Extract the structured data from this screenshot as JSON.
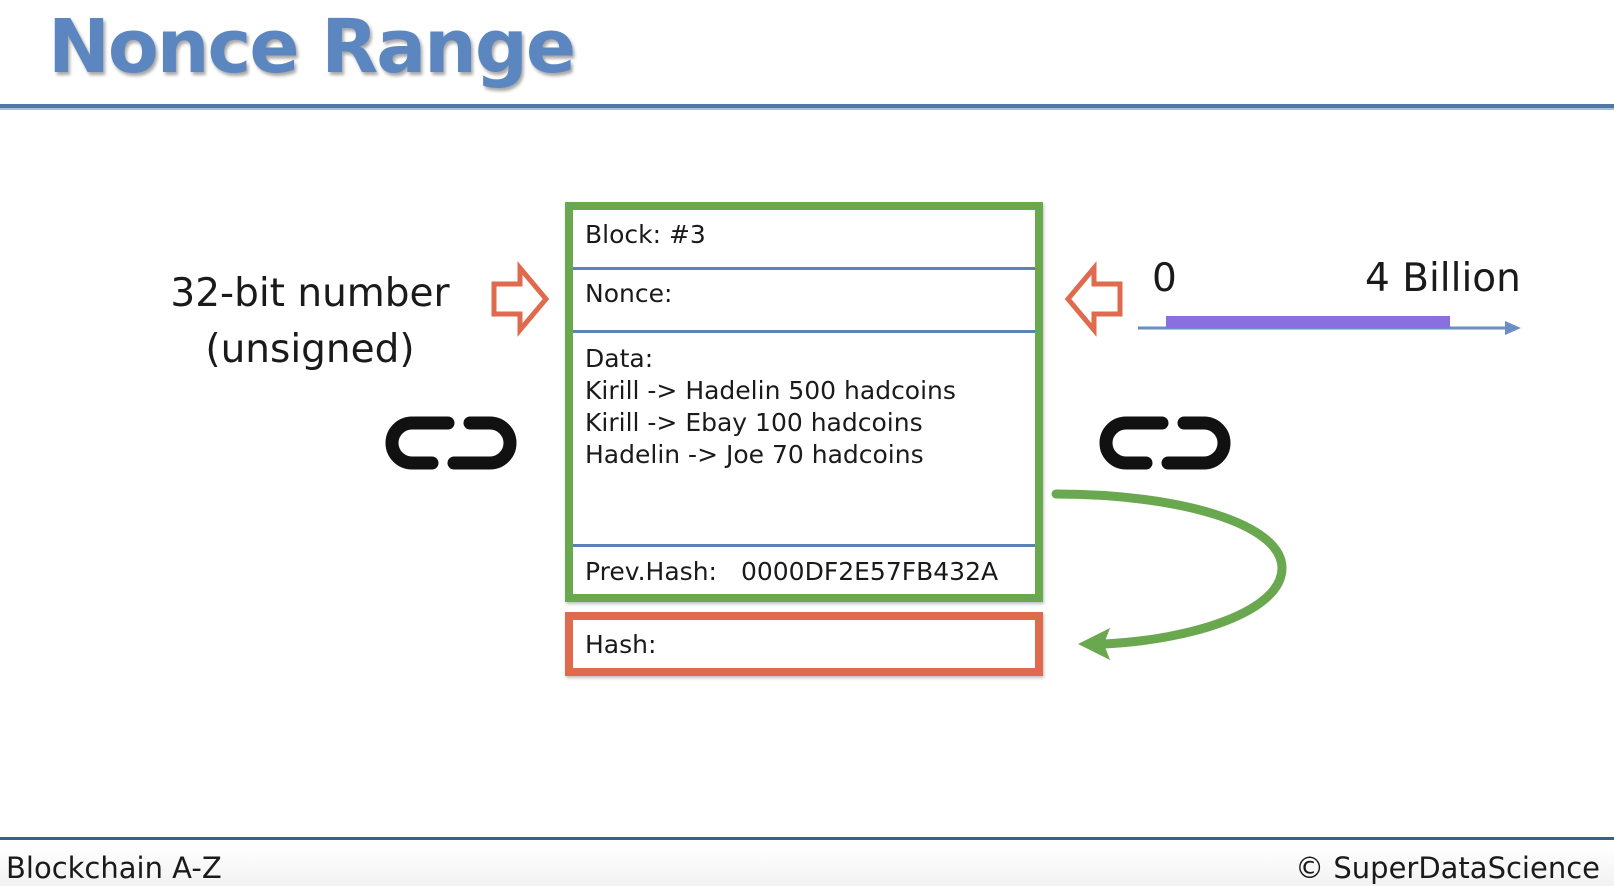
{
  "slide": {
    "title": "Nonce Range",
    "left_caption": [
      "32-bit number",
      "(unsigned)"
    ]
  },
  "block": {
    "block_label": "Block: #3",
    "nonce_label": "Nonce:",
    "data_label": "Data:",
    "transactions": [
      "Kirill -> Hadelin 500 hadcoins",
      "Kirill -> Ebay 100 hadcoins",
      "Hadelin -> Joe 70 hadcoins"
    ],
    "prev_hash_label": "Prev.Hash:",
    "prev_hash_value": "0000DF2E57FB432A",
    "hash_label": "Hash:"
  },
  "range": {
    "min_label": "0",
    "max_label": "4 Billion"
  },
  "footer": {
    "course": "Blockchain A-Z",
    "copyright": "© SuperDataScience"
  },
  "icons": {
    "left_arrow": "hollow-right-arrow-icon",
    "right_arrow": "hollow-left-arrow-icon",
    "chain": "chain-link-icon",
    "curved_arrow": "curved-arrow-icon"
  },
  "colors": {
    "title": "#5b86bf",
    "block_border": "#6aa84f",
    "hash_border": "#e06a4e",
    "range_bar": "#8a6fe0",
    "axis": "#6b8fc4",
    "arrow_outline": "#e06a4e",
    "curved_arrow": "#6aa84f"
  }
}
